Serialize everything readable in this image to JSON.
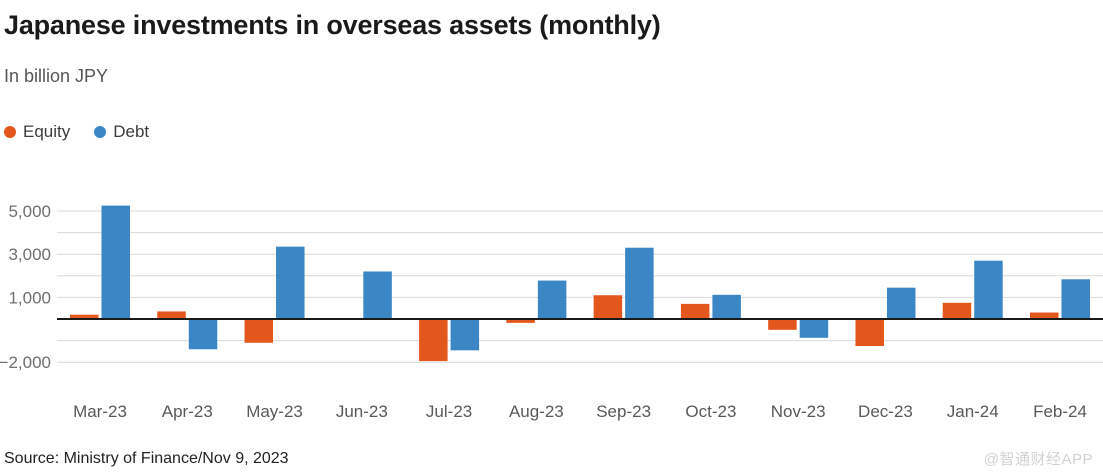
{
  "header": {
    "title": "Japanese investments in overseas assets (monthly)",
    "subtitle": "In billion JPY"
  },
  "legend": {
    "items": [
      {
        "label": "Equity",
        "color": "#e4571c"
      },
      {
        "label": "Debt",
        "color": "#3b87c6"
      }
    ]
  },
  "chart_data": {
    "type": "bar",
    "title": "Japanese investments in overseas assets (monthly)",
    "unit_label": "In billion JPY",
    "categories": [
      "Mar-23",
      "Apr-23",
      "May-23",
      "Jun-23",
      "Jul-23",
      "Aug-23",
      "Sep-23",
      "Oct-23",
      "Nov-23",
      "Dec-23",
      "Jan-24",
      "Feb-24"
    ],
    "series": [
      {
        "name": "Equity",
        "color": "#e4571c",
        "values": [
          200,
          350,
          -1100,
          0,
          -1950,
          -180,
          1100,
          700,
          -500,
          -1250,
          750,
          300
        ]
      },
      {
        "name": "Debt",
        "color": "#3b87c6",
        "values": [
          5250,
          -1400,
          3350,
          2200,
          -1450,
          1780,
          3300,
          1120,
          -870,
          1450,
          2700,
          1840
        ]
      }
    ],
    "ylim": [
      -2000,
      5500
    ],
    "yticks": [
      {
        "value": 5000,
        "label": "5,000"
      },
      {
        "value": 3000,
        "label": "3,000"
      },
      {
        "value": 1000,
        "label": "1,000"
      },
      {
        "value": -2000,
        "label": "−2,000"
      }
    ],
    "gridline_values": [
      5000,
      4000,
      3000,
      2000,
      1000,
      -1000,
      -2000
    ],
    "zero_line_value": 0,
    "grid_color": "#d9d9d9",
    "zero_line_color": "#1a1a1a",
    "axis_text_color": "#6f6f6f",
    "xaxis_text_color": "#595959",
    "legend_position": "top-left",
    "grid": "horizontal-on"
  },
  "footer": {
    "source": "Source: Ministry of Finance/Nov 9, 2023",
    "watermark": "@智通财经APP"
  }
}
